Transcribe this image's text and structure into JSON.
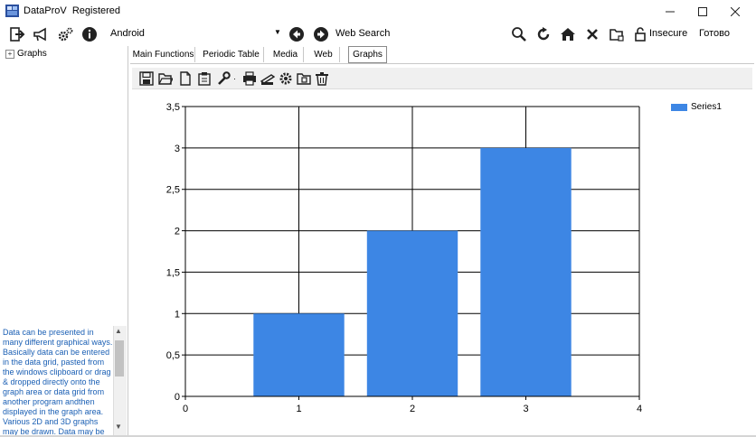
{
  "window": {
    "title": "DataProV",
    "subtitle": "Registered",
    "minimize_icon": "minimize-icon",
    "maximize_icon": "maximize-icon",
    "close_icon": "close-icon"
  },
  "toolbar": {
    "device_combo": "Android",
    "web_search_label": "Web Search",
    "security_label": "Insecure",
    "status_label": "Готово",
    "icons": [
      "exit-icon",
      "megaphone-icon",
      "settings-icon",
      "info-icon",
      "back-icon",
      "forward-icon",
      "search-icon",
      "refresh-icon",
      "home-icon",
      "stop-icon",
      "folder-icon",
      "lock-icon"
    ]
  },
  "left_panel": {
    "tree_expand": "+",
    "tree_root": "Graphs",
    "description": "Data can be presented in many different graphical ways. Basically data can be entered in the data grid, pasted from the windows clipboard or drag & dropped directly onto the graph area or data grid from another program andthen displayed in the graph area. Various 2D and 3D graphs may be drawn. Data may be"
  },
  "tabs": [
    "Main Functions",
    "Periodic Table",
    "Media",
    "Web",
    "Graphs"
  ],
  "selected_tab": "Graphs",
  "graph_toolbar": {
    "icons": [
      "save-icon",
      "open-folder-icon",
      "new-document-icon",
      "clipboard-icon",
      "wrench-icon",
      "print-icon",
      "scanner-icon",
      "gear-icon",
      "export-icon",
      "trash-icon"
    ]
  },
  "colors": {
    "series": "#3d86e4",
    "grid": "#000000"
  },
  "chart_data": {
    "type": "bar",
    "x": [
      1,
      2,
      3
    ],
    "series": [
      {
        "name": "Series1",
        "values": [
          1,
          2,
          3
        ]
      }
    ],
    "xlim": [
      0,
      4
    ],
    "ylim": [
      0,
      3.5
    ],
    "xticks": [
      "0",
      "1",
      "2",
      "3",
      "4"
    ],
    "yticks": [
      "0",
      "0,5",
      "1",
      "1,5",
      "2",
      "2,5",
      "3",
      "3,5"
    ],
    "grid": true,
    "legend_position": "top-right"
  }
}
